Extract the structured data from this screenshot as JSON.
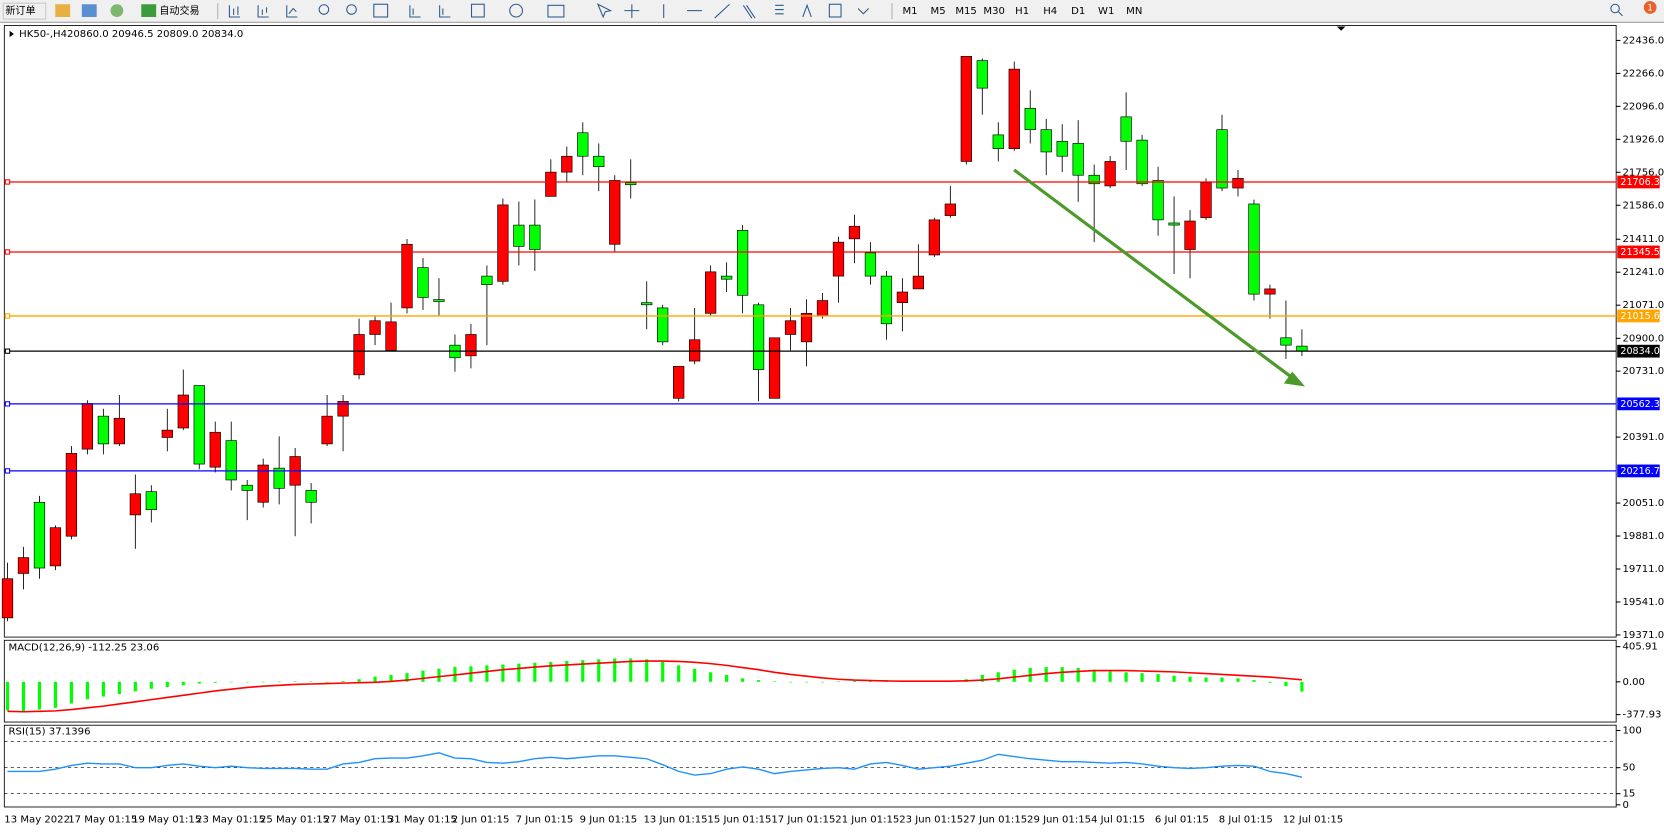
{
  "toolbar": {
    "new_order": "新订单",
    "auto_trading": "自动交易",
    "timeframes": [
      "M1",
      "M5",
      "M15",
      "M30",
      "H1",
      "H4",
      "D1",
      "W1",
      "MN"
    ],
    "notification": "1"
  },
  "chart_data": [
    {
      "type": "candlestick",
      "title": "HK50-,H4",
      "ohlc_label": "20860.0 20946.5 20809.0 20834.0",
      "up_color": "#ff0000",
      "down_color": "#00ff00",
      "categories": [
        "13 May 2022",
        null,
        null,
        null,
        "17 May 01:15",
        null,
        null,
        null,
        "19 May 01:15",
        null,
        null,
        null,
        "23 May 01:15",
        null,
        null,
        null,
        "25 May 01:15",
        null,
        null,
        null,
        "27 May 01:15",
        null,
        null,
        null,
        "31 May 01:15",
        null,
        null,
        null,
        "2 Jun 01:15",
        null,
        null,
        null,
        "7 Jun 01:15",
        null,
        null,
        null,
        "9 Jun 01:15",
        null,
        null,
        null,
        "13 Jun 01:15",
        null,
        null,
        null,
        "15 Jun 01:15",
        null,
        null,
        null,
        "17 Jun 01:15",
        null,
        null,
        null,
        "21 Jun 01:15",
        null,
        null,
        null,
        "23 Jun 01:15",
        null,
        null,
        null,
        "27 Jun 01:15",
        null,
        null,
        null,
        "29 Jun 01:15",
        null,
        null,
        null,
        "4 Jul 01:15",
        null,
        null,
        null,
        "6 Jul 01:15",
        null,
        null,
        null,
        "8 Jul 01:15",
        null,
        null,
        null,
        "12 Jul 01:15",
        null
      ],
      "open": [
        19459,
        19688,
        20055,
        19727,
        19880,
        20329,
        20499,
        20356,
        19990,
        20110,
        20389,
        20438,
        20657,
        20236,
        20373,
        20143,
        20055,
        20231,
        20143,
        20116,
        20356,
        20499,
        20712,
        20920,
        20838,
        21057,
        21265,
        21100,
        20865,
        20810,
        21221,
        21194,
        21484,
        21484,
        21632,
        21757,
        21960,
        21839,
        21385,
        21703,
        21084,
        21057,
        20591,
        20783,
        21029,
        21221,
        21457,
        21073,
        20591,
        20920,
        20882,
        21018,
        21221,
        21413,
        21341,
        21221,
        21084,
        21155,
        21330,
        21533,
        21812,
        22332,
        21949,
        21878,
        22086,
        21976,
        21916,
        21905,
        21741,
        21686,
        22042,
        21922,
        21714,
        21495,
        21358,
        21522,
        21976,
        21675,
        21593,
        21128,
        20903,
        20860
      ],
      "high": [
        19743,
        19825,
        20088,
        19935,
        20345,
        20581,
        20537,
        20608,
        20198,
        20143,
        20537,
        20739,
        20657,
        20471,
        20471,
        20170,
        20280,
        20395,
        20335,
        20154,
        20608,
        20608,
        21002,
        21018,
        21084,
        21412,
        21314,
        21210,
        20920,
        20975,
        21276,
        21621,
        21605,
        21616,
        21823,
        21889,
        22014,
        21905,
        21741,
        21823,
        21194,
        21073,
        20756,
        21057,
        21276,
        21292,
        21484,
        21084,
        20903,
        21057,
        21101,
        21134,
        21424,
        21538,
        21396,
        21248,
        21210,
        21385,
        21522,
        21686,
        22354,
        22343,
        22014,
        22327,
        22179,
        22031,
        22004,
        22025,
        21796,
        21840,
        22168,
        21949,
        21785,
        21632,
        21561,
        21725,
        22053,
        21768,
        21615,
        21177,
        21095,
        20946.5
      ],
      "low": [
        19442,
        19606,
        19661,
        19705,
        19864,
        20302,
        20302,
        20345,
        19815,
        19951,
        20318,
        20427,
        20225,
        20209,
        20116,
        19963,
        20028,
        20044,
        19880,
        19946,
        20345,
        20318,
        20690,
        20865,
        20849,
        21029,
        21046,
        21013,
        20728,
        20745,
        20865,
        21177,
        21276,
        21248,
        21632,
        21703,
        21741,
        21659,
        21347,
        21621,
        20947,
        20865,
        20575,
        20767,
        21018,
        21139,
        21029,
        20575,
        20591,
        20838,
        20756,
        21002,
        21084,
        21287,
        21177,
        20893,
        20936,
        21155,
        21319,
        21522,
        21796,
        22053,
        21812,
        21867,
        21905,
        21741,
        21757,
        21604,
        21396,
        21675,
        21768,
        21686,
        21429,
        21232,
        21210,
        21511,
        21659,
        21632,
        21095,
        21002,
        20794,
        20809
      ],
      "close": [
        19661,
        19770,
        19716,
        19924,
        20307,
        20564,
        20356,
        20488,
        20099,
        20017,
        20427,
        20608,
        20252,
        20416,
        20170,
        20116,
        20247,
        20127,
        20291,
        20055,
        20499,
        20575,
        20920,
        20991,
        20985,
        21385,
        21111,
        21090,
        20800,
        20920,
        21177,
        21588,
        21374,
        21358,
        21757,
        21839,
        21839,
        21785,
        21714,
        21692,
        21073,
        20882,
        20756,
        20893,
        21243,
        21205,
        21122,
        20739,
        20903,
        20991,
        21029,
        21095,
        21396,
        21478,
        21221,
        20975,
        21139,
        21221,
        21511,
        21593,
        22354,
        22190,
        21878,
        22288,
        21976,
        21861,
        21839,
        21741,
        21697,
        21812,
        21916,
        21697,
        21511,
        21484,
        21505,
        21703,
        21675,
        21725,
        21128,
        21155,
        20865,
        20834
      ],
      "ylim": [
        19360,
        22513
      ],
      "yticks": [
        {
          "value": 22436,
          "label": "22436.0"
        },
        {
          "value": 22266,
          "label": "22266.0"
        },
        {
          "value": 22096,
          "label": "22096.0"
        },
        {
          "value": 21926,
          "label": "21926.0"
        },
        {
          "value": 21756,
          "label": "21756.0"
        },
        {
          "value": 21586,
          "label": "21586.0"
        },
        {
          "value": 21411,
          "label": "21411.0"
        },
        {
          "value": 21241,
          "label": "21241.0"
        },
        {
          "value": 21071,
          "label": "21071.0"
        },
        {
          "value": 20900,
          "label": "20900.0"
        },
        {
          "value": 20731,
          "label": "20731.0"
        },
        {
          "value": 20391,
          "label": "20391.0"
        },
        {
          "value": 20051,
          "label": "20051.0"
        },
        {
          "value": 19881,
          "label": "19881.0"
        },
        {
          "value": 19711,
          "label": "19711.0"
        },
        {
          "value": 19541,
          "label": "19541.0"
        },
        {
          "value": 19371,
          "label": "19371.0"
        }
      ],
      "levels": [
        {
          "value": 21706.3,
          "label": "21706.3",
          "color": "#ff0000"
        },
        {
          "value": 21345.5,
          "label": "21345.5",
          "color": "#ff0000"
        },
        {
          "value": 21015.6,
          "label": "21015.6",
          "color": "#ffa500"
        },
        {
          "value": 20834,
          "label": "20834.0",
          "color": "#000000"
        },
        {
          "value": 20562.3,
          "label": "20562.3",
          "color": "#0000ff"
        },
        {
          "value": 20216.7,
          "label": "20216.7",
          "color": "#0000ff"
        }
      ]
    },
    {
      "type": "macd",
      "title": "MACD(12,26,9) -112.25 23.06",
      "color": "#00ff00",
      "signal_color": "#ff0000",
      "values": [
        -330,
        -340,
        -320,
        -300,
        -250,
        -200,
        -170,
        -140,
        -110,
        -80,
        -60,
        -40,
        -20,
        -10,
        -5,
        -2,
        2,
        3,
        5,
        3,
        0,
        10,
        30,
        60,
        80,
        100,
        130,
        150,
        170,
        180,
        190,
        200,
        210,
        220,
        230,
        240,
        250,
        260,
        270,
        270,
        260,
        230,
        190,
        150,
        110,
        80,
        40,
        20,
        5,
        -5,
        -5,
        0,
        5,
        10,
        10,
        5,
        5,
        5,
        5,
        10,
        30,
        80,
        110,
        140,
        160,
        170,
        170,
        160,
        140,
        120,
        110,
        100,
        90,
        70,
        60,
        50,
        50,
        40,
        20,
        -10,
        -50,
        -112.25
      ],
      "signal": [
        -340,
        -345,
        -340,
        -335,
        -320,
        -300,
        -280,
        -255,
        -230,
        -205,
        -180,
        -155,
        -130,
        -105,
        -85,
        -65,
        -50,
        -40,
        -30,
        -25,
        -20,
        -15,
        -10,
        -5,
        5,
        20,
        40,
        60,
        80,
        100,
        120,
        140,
        155,
        170,
        185,
        195,
        205,
        215,
        225,
        235,
        240,
        240,
        235,
        225,
        210,
        190,
        165,
        140,
        110,
        85,
        65,
        45,
        30,
        20,
        15,
        10,
        8,
        8,
        8,
        8,
        12,
        20,
        35,
        55,
        75,
        95,
        110,
        120,
        130,
        130,
        130,
        125,
        120,
        115,
        105,
        95,
        85,
        75,
        65,
        55,
        40,
        23.06
      ],
      "ylim": [
        -463.7,
        479.4
      ],
      "yticks": [
        {
          "value": 405.91,
          "label": "405.91"
        },
        {
          "value": 0,
          "label": "0.00"
        },
        {
          "value": -377.93,
          "label": "-377.93"
        }
      ]
    },
    {
      "type": "rsi",
      "title": "RSI(15) 37.1396",
      "color": "#1e90ff",
      "values": [
        45,
        45,
        45,
        48,
        53,
        56,
        55,
        55,
        50,
        50,
        53,
        55,
        52,
        50,
        52,
        50,
        49,
        49,
        49,
        48,
        48,
        55,
        57,
        62,
        63,
        63,
        66,
        70,
        63,
        62,
        57,
        56,
        58,
        62,
        64,
        62,
        64,
        66,
        66,
        64,
        62,
        54,
        45,
        40,
        42,
        48,
        51,
        48,
        42,
        45,
        47,
        49,
        50,
        48,
        55,
        57,
        53,
        48,
        50,
        52,
        56,
        60,
        68,
        65,
        62,
        60,
        58,
        58,
        57,
        56,
        57,
        55,
        52,
        50,
        49,
        50,
        52,
        53,
        52,
        45,
        42,
        37.1396
      ],
      "ylim": [
        -2.9,
        107.1
      ],
      "yticks": [
        100,
        50,
        15,
        0
      ],
      "levels": [
        85,
        50,
        15
      ]
    }
  ]
}
